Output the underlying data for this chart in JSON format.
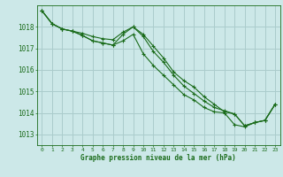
{
  "background_color": "#cce8e8",
  "grid_color": "#aacccc",
  "line_color": "#1a6b1a",
  "xlabel": "Graphe pression niveau de la mer (hPa)",
  "ylim": [
    1012.5,
    1019.0
  ],
  "xlim": [
    -0.5,
    23.5
  ],
  "yticks": [
    1013,
    1014,
    1015,
    1016,
    1017,
    1018
  ],
  "xticks": [
    0,
    1,
    2,
    3,
    4,
    5,
    6,
    7,
    8,
    9,
    10,
    11,
    12,
    13,
    14,
    15,
    16,
    17,
    18,
    19,
    20,
    21,
    22,
    23
  ],
  "series1": [
    1018.75,
    1018.15,
    1017.9,
    1017.8,
    1017.7,
    1017.55,
    1017.45,
    1017.4,
    1017.75,
    1018.0,
    1017.65,
    1017.1,
    1016.55,
    1015.9,
    1015.5,
    1015.2,
    1014.75,
    1014.4,
    1014.05,
    1013.95,
    1013.4,
    1013.55,
    1013.65,
    1014.4
  ],
  "series2": [
    1018.75,
    1018.15,
    1017.9,
    1017.8,
    1017.6,
    1017.35,
    1017.25,
    1017.15,
    1017.65,
    1018.0,
    1017.55,
    1016.85,
    1016.35,
    1015.75,
    1015.25,
    1014.9,
    1014.55,
    1014.25,
    1014.1,
    1013.95,
    1013.4,
    1013.55,
    1013.65,
    1014.4
  ],
  "series3": [
    1018.75,
    1018.15,
    1017.9,
    1017.8,
    1017.6,
    1017.35,
    1017.25,
    1017.15,
    1017.35,
    1017.65,
    1016.75,
    1016.2,
    1015.75,
    1015.3,
    1014.85,
    1014.6,
    1014.25,
    1014.05,
    1014.0,
    1013.45,
    1013.35,
    1013.55,
    1013.65,
    1014.4
  ]
}
